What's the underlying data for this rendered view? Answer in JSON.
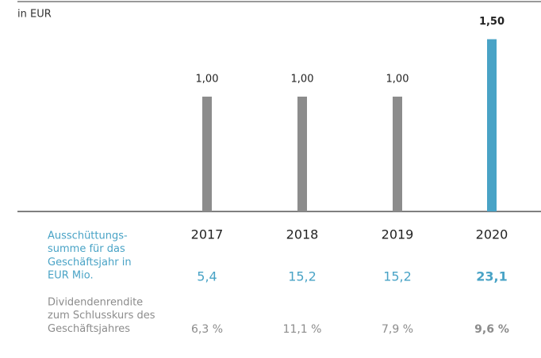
{
  "chart_data": {
    "type": "bar",
    "unit_label": "in EUR",
    "categories": [
      "2017",
      "2018",
      "2019",
      "2020"
    ],
    "values": [
      1.0,
      1.0,
      1.0,
      1.5
    ],
    "value_labels": [
      "1,00",
      "1,00",
      "1,00",
      "1,50"
    ],
    "colors": [
      "#8c8c8c",
      "#8c8c8c",
      "#8c8c8c",
      "#49a3c6"
    ],
    "bold": [
      false,
      false,
      false,
      true
    ],
    "rows": [
      {
        "label": [
          "Ausschüttungs-",
          "summe für das",
          "Geschäftsjahr in",
          "EUR Mio."
        ],
        "color": "#49a3c6",
        "values": [
          "5,4",
          "15,2",
          "15,2",
          "23,1"
        ]
      },
      {
        "label": [
          "Dividendenrendite",
          "zum Schlusskurs des",
          "Geschäftsjahres"
        ],
        "color": "#8c8c8c",
        "values": [
          "6,3 %",
          "11,1 %",
          "7,9 %",
          "9,6 %"
        ]
      }
    ]
  }
}
